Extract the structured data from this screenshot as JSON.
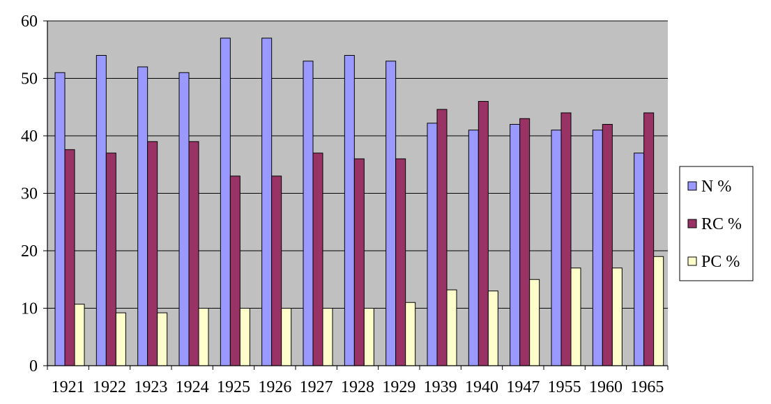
{
  "chart_data": {
    "type": "bar",
    "title": "",
    "xlabel": "",
    "ylabel": "",
    "ylim": [
      0,
      60
    ],
    "yticks": [
      0,
      10,
      20,
      30,
      40,
      50,
      60
    ],
    "grid": true,
    "legend_position": "right",
    "categories": [
      "1921",
      "1922",
      "1923",
      "1924",
      "1925",
      "1926",
      "1927",
      "1928",
      "1929",
      "1939",
      "1940",
      "1947",
      "1955",
      "1960",
      "1965"
    ],
    "series": [
      {
        "name": "N %",
        "color": "#9999ff",
        "values": [
          51,
          54,
          52,
          51,
          57,
          57,
          53,
          54,
          53,
          42.2,
          41,
          42,
          41,
          41,
          37
        ]
      },
      {
        "name": "RC %",
        "color": "#993366",
        "values": [
          37.6,
          37,
          39,
          39,
          33,
          33,
          37,
          36,
          36,
          44.6,
          46,
          43,
          44,
          42,
          44
        ]
      },
      {
        "name": "PC %",
        "color": "#ffffcc",
        "values": [
          10.7,
          9.2,
          9.2,
          10,
          10,
          10,
          10,
          10,
          11,
          13.2,
          13,
          15,
          17,
          17,
          19
        ]
      }
    ],
    "colors": {
      "plot_background": "#c0c0c0",
      "gridline": "#000000",
      "bar_outline": "#000000"
    }
  }
}
